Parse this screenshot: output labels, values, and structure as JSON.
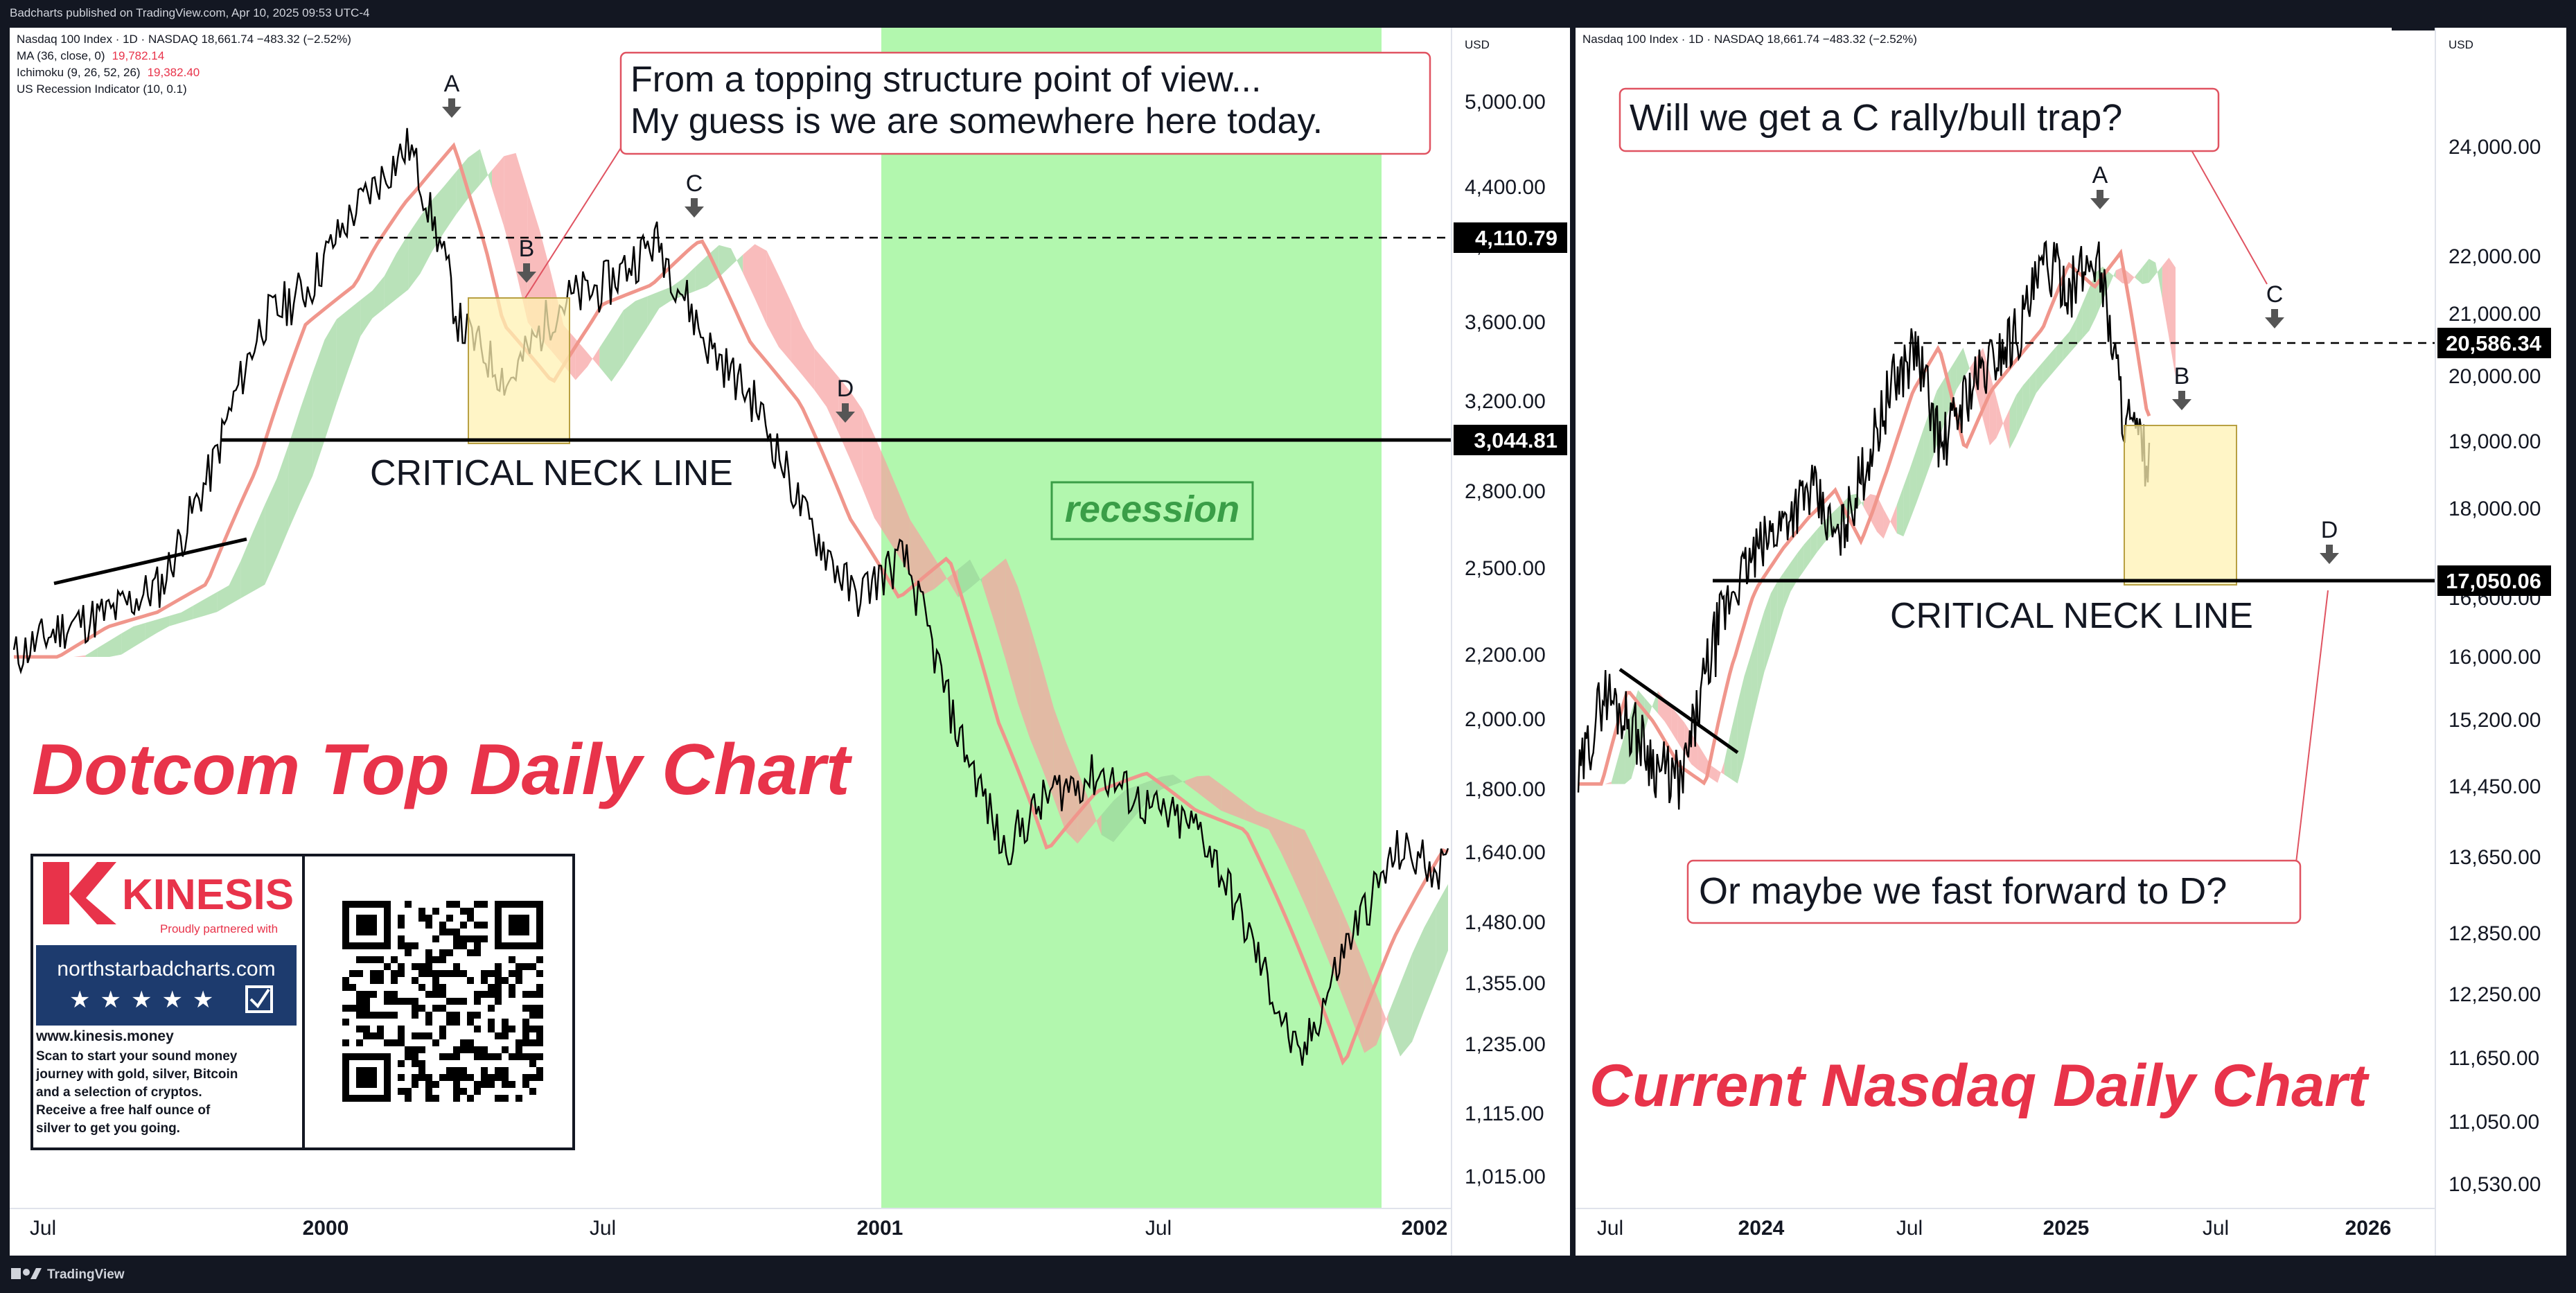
{
  "header": {
    "text": "Badcharts published on TradingView.com, Apr 10, 2025 09:53 UTC-4"
  },
  "footer": {
    "logo_text": "TradingView"
  },
  "colors": {
    "background_dark": "#131722",
    "recession_green": "#b2f7ae",
    "ma_line": "#f0968c",
    "callout_border": "#e05361",
    "title_red": "#e8334a",
    "cloud_green": "#9bd69b",
    "cloud_red": "#f7a0a0",
    "highlight_box": "#fff2b3"
  },
  "left_chart": {
    "legend": [
      {
        "label": "Nasdaq 100 Index · 1D · NASDAQ  18,661.74  −483.32 (−2.52%)",
        "color": "#000000"
      },
      {
        "label": "MA (36, close, 0)",
        "value": "19,782.14",
        "color": "#e8334a"
      },
      {
        "label": "Ichimoku (9, 26, 52, 26)",
        "value": "19,382.40",
        "color": "#e8334a"
      },
      {
        "label": "US Recession Indicator (10, 0.1)",
        "value": "",
        "color": "#000000"
      }
    ],
    "currency": "USD",
    "y_ticks": [
      "5,000.00",
      "4,400.00",
      "4,000.00",
      "3,600.00",
      "3,200.00",
      "2,800.00",
      "2,500.00",
      "2,200.00",
      "2,000.00",
      "1,800.00",
      "1,640.00",
      "1,480.00",
      "1,355.00",
      "1,235.00",
      "1,115.00",
      "1,015.00"
    ],
    "x_ticks": [
      "Jul",
      "2000",
      "Jul",
      "2001",
      "Jul",
      "2002"
    ],
    "price_labels": [
      "4,110.79",
      "3,044.81"
    ],
    "point_labels": [
      "A",
      "B",
      "C",
      "D"
    ],
    "callout": {
      "line1": "From a topping structure point of view...",
      "line2": "My guess is we are somewhere here today."
    },
    "neck_line_label": "CRITICAL NECK LINE",
    "recession_label": "recession",
    "title": "Dotcom Top Daily Chart",
    "sponsor": {
      "brand": "KINESIS",
      "tagline": "Proudly partnered with",
      "partner": "northstarbadcharts.com",
      "url": "www.kinesis.money",
      "blurb": "Scan to start your sound money journey with gold, silver, Bitcoin and a selection of cryptos. Receive a free half ounce of silver to get you going."
    }
  },
  "right_chart": {
    "legend": [
      {
        "label": "Nasdaq 100 Index · 1D · NASDAQ  18,661.74  −483.32 (−2.52%)"
      }
    ],
    "currency": "USD",
    "y_ticks": [
      "24,000.00",
      "22,000.00",
      "21,000.00",
      "20,000.00",
      "19,000.00",
      "18,000.00",
      "16,600.00",
      "16,000.00",
      "15,200.00",
      "14,450.00",
      "13,650.00",
      "12,850.00",
      "12,250.00",
      "11,650.00",
      "11,050.00",
      "10,530.00"
    ],
    "x_ticks": [
      "Jul",
      "2024",
      "Jul",
      "2025",
      "Jul",
      "2026"
    ],
    "price_labels": [
      "20,586.34",
      "17,050.06"
    ],
    "point_labels": [
      "A",
      "B",
      "C",
      "D"
    ],
    "callout_top": "Will we get a C rally/bull trap?",
    "callout_bottom": "Or maybe we fast forward to D?",
    "neck_line_label": "CRITICAL NECK LINE",
    "title": "Current Nasdaq Daily Chart"
  },
  "chart_data": [
    {
      "type": "line",
      "title": "Dotcom Top Daily Chart",
      "series": [
        {
          "x": [
            "1999-07",
            "1999-08",
            "1999-09",
            "1999-10",
            "1999-11",
            "1999-12",
            "2000-01",
            "2000-02",
            "2000-03",
            "2000-04",
            "2000-05",
            "2000-06",
            "2000-07",
            "2000-08",
            "2000-09",
            "2000-10",
            "2000-11",
            "2000-12",
            "2001-01",
            "2001-02",
            "2001-03",
            "2001-04",
            "2001-05",
            "2001-06",
            "2001-07",
            "2001-08",
            "2001-09",
            "2001-10",
            "2001-11",
            "2001-12"
          ],
          "values": [
            2200,
            2300,
            2350,
            2450,
            2900,
            3600,
            3800,
            4300,
            4700,
            3600,
            3300,
            3700,
            3800,
            4050,
            3500,
            3200,
            2700,
            2400,
            2550,
            2000,
            1650,
            1800,
            1850,
            1750,
            1700,
            1450,
            1200,
            1450,
            1650,
            1600
          ]
        }
      ],
      "horizontal_levels": [
        4110.79,
        3044.81
      ],
      "recession": [
        "2001-03",
        "2001-11"
      ],
      "ylim": [
        1015,
        5000
      ],
      "scale": "log"
    },
    {
      "type": "line",
      "title": "Current Nasdaq Daily Chart",
      "series": [
        {
          "x": [
            "2023-06",
            "2023-07",
            "2023-08",
            "2023-09",
            "2023-10",
            "2023-11",
            "2023-12",
            "2024-01",
            "2024-02",
            "2024-03",
            "2024-04",
            "2024-05",
            "2024-06",
            "2024-07",
            "2024-08",
            "2024-09",
            "2024-10",
            "2024-11",
            "2024-12",
            "2025-01",
            "2025-02",
            "2025-03",
            "2025-04"
          ],
          "values": [
            14500,
            15600,
            15200,
            14700,
            14500,
            15900,
            16800,
            17400,
            17900,
            18300,
            17500,
            18600,
            19800,
            20500,
            18900,
            19800,
            20300,
            20800,
            21900,
            21500,
            22100,
            19500,
            18661.74
          ]
        }
      ],
      "horizontal_levels": [
        20586.34,
        17050.06
      ],
      "ylim": [
        10530,
        24000
      ],
      "scale": "log"
    }
  ]
}
